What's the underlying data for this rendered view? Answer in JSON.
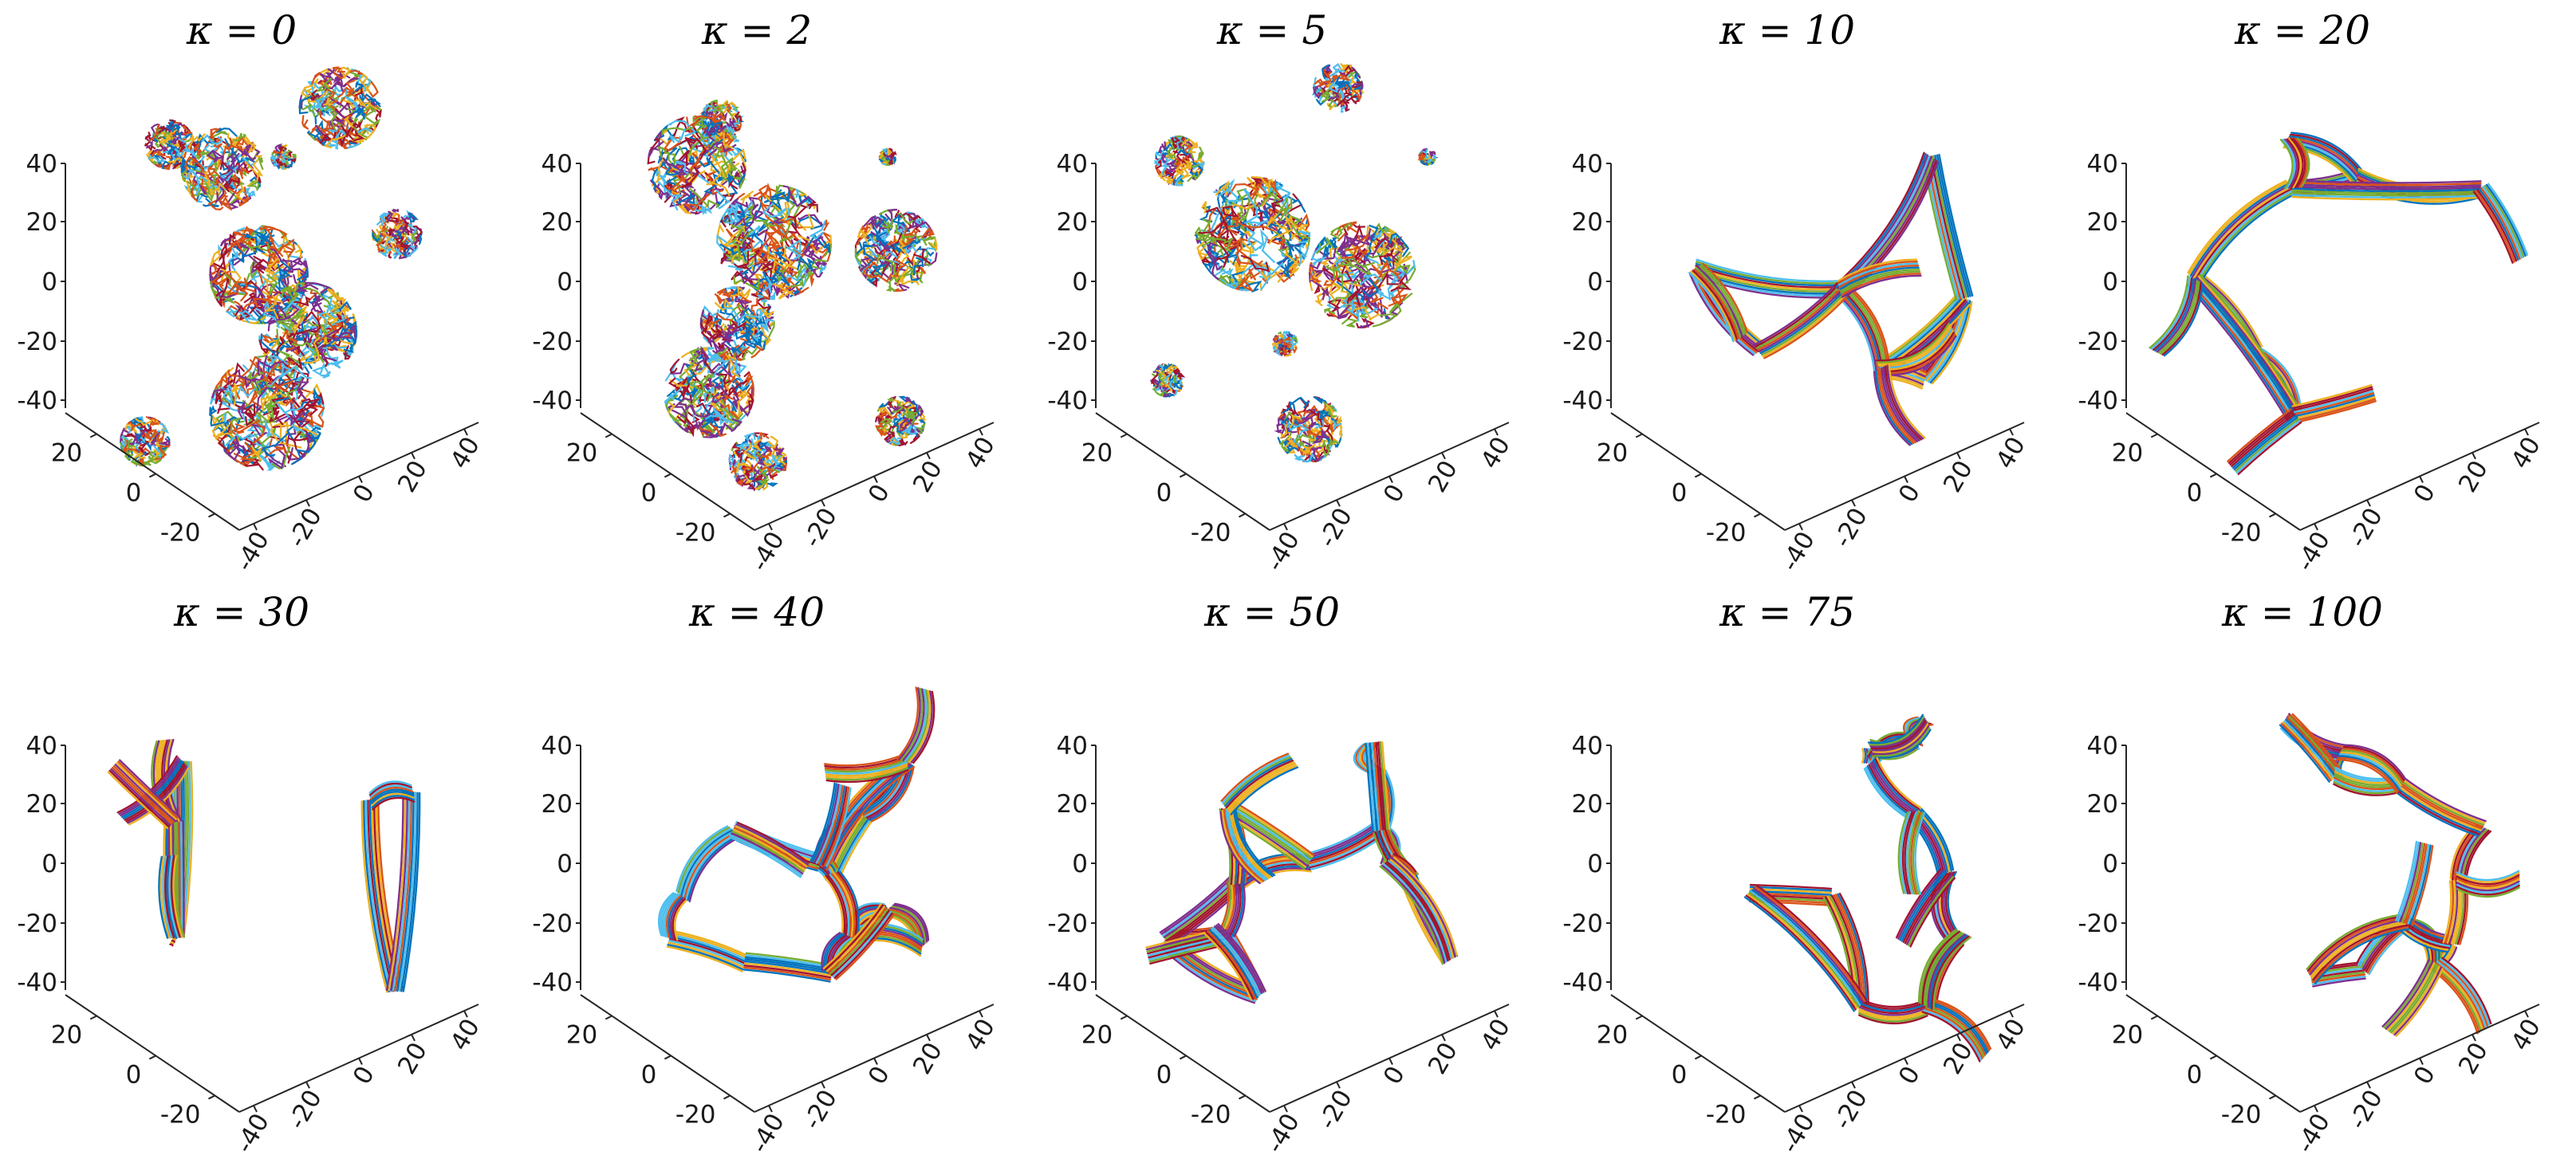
{
  "figure": {
    "colors": [
      "#0072BD",
      "#D95319",
      "#EDB120",
      "#7E2F8E",
      "#77AC30",
      "#4DBEEE",
      "#A2142F"
    ],
    "panels": [
      {
        "title": "κ = 0",
        "kappa": 0,
        "morphology": "globules"
      },
      {
        "title": "κ = 2",
        "kappa": 2,
        "morphology": "globules"
      },
      {
        "title": "κ = 5",
        "kappa": 5,
        "morphology": "globules"
      },
      {
        "title": "κ = 10",
        "kappa": 10,
        "morphology": "network"
      },
      {
        "title": "κ = 20",
        "kappa": 20,
        "morphology": "network"
      },
      {
        "title": "κ = 30",
        "kappa": 30,
        "morphology": "network"
      },
      {
        "title": "κ = 40",
        "kappa": 40,
        "morphology": "network"
      },
      {
        "title": "κ = 50",
        "kappa": 50,
        "morphology": "network"
      },
      {
        "title": "κ = 75",
        "kappa": 75,
        "morphology": "network"
      },
      {
        "title": "κ = 100",
        "kappa": 100,
        "morphology": "network"
      }
    ],
    "axes": {
      "z_ticks": [
        "40",
        "20",
        "0",
        "-20",
        "-40"
      ],
      "y_ticks": [
        "20",
        "0",
        "-20"
      ],
      "x_ticks": [
        "-40",
        "-20",
        "0",
        "20",
        "40"
      ]
    }
  }
}
